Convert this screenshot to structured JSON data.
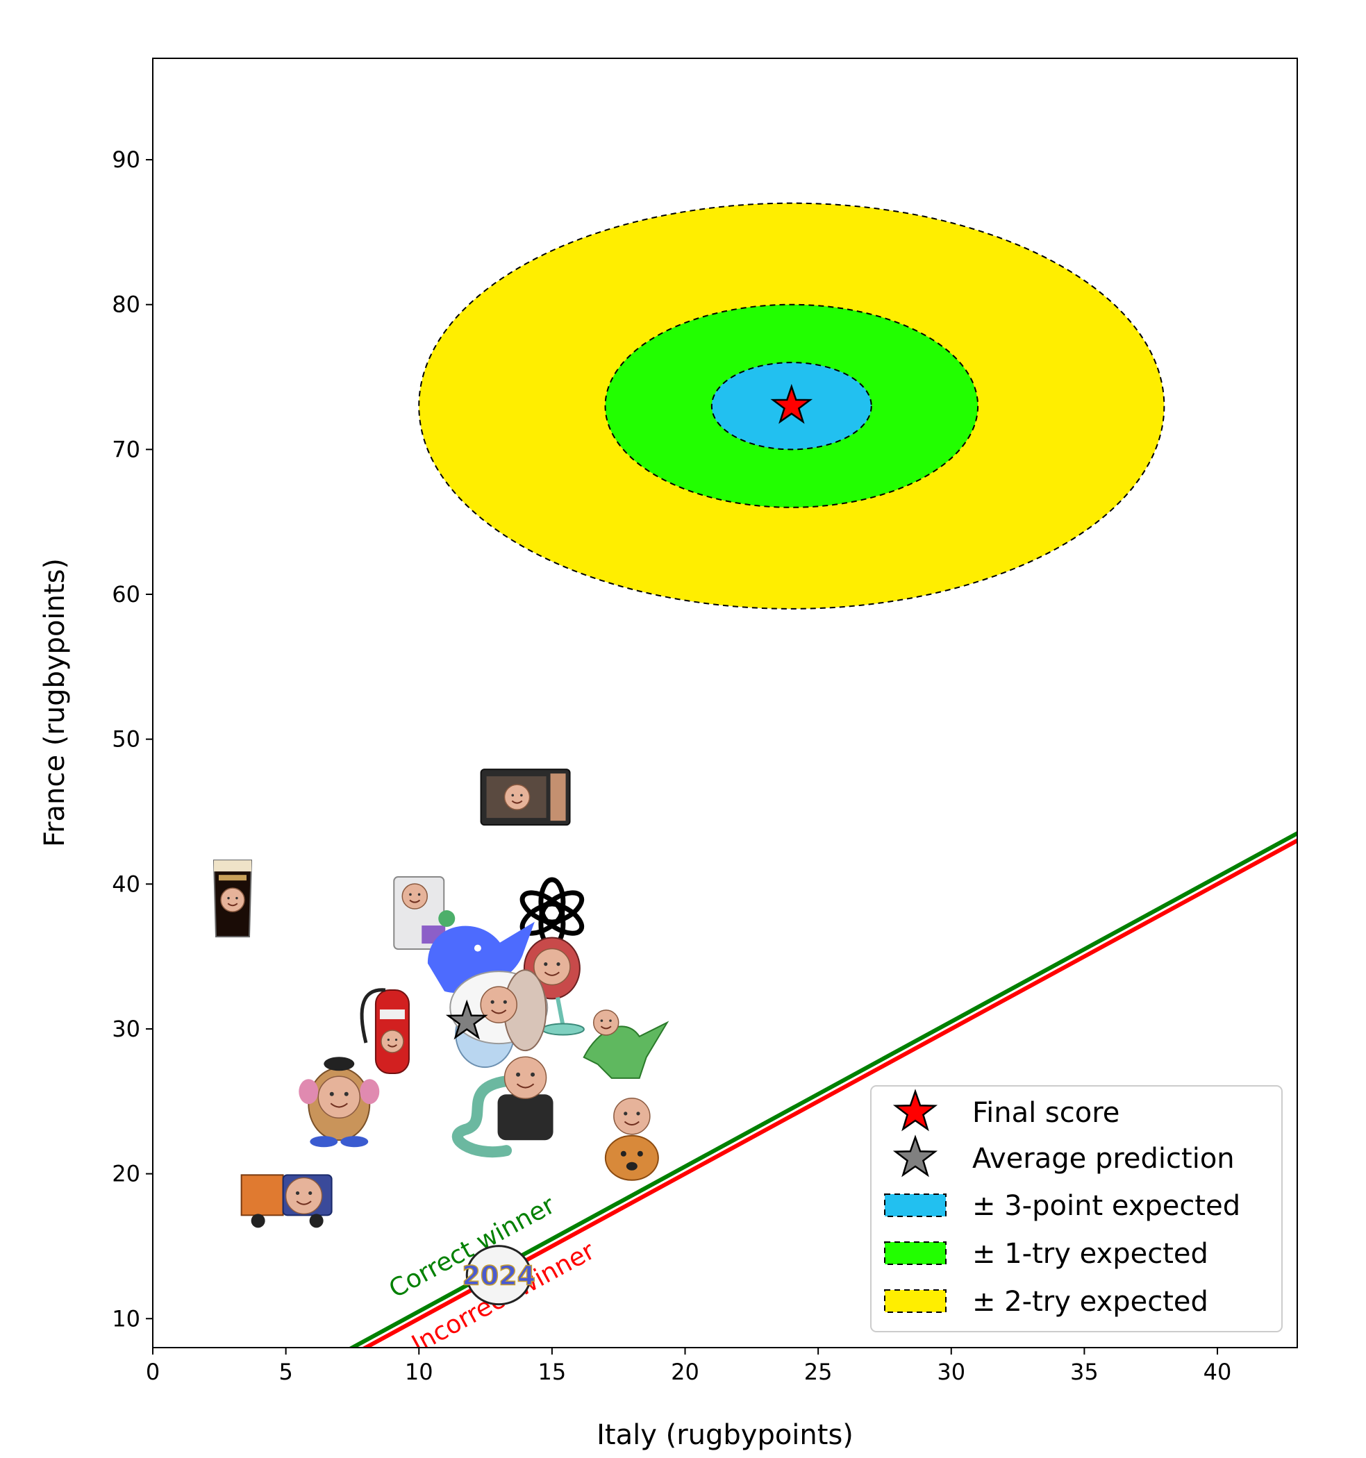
{
  "chart_data": {
    "type": "scatter",
    "xlabel": "Italy (rugbypoints)",
    "ylabel": "France (rugbypoints)",
    "xlim": [
      0,
      43
    ],
    "ylim": [
      8,
      97
    ],
    "xticks": [
      0,
      5,
      10,
      15,
      20,
      25,
      30,
      35,
      40
    ],
    "yticks": [
      10,
      20,
      30,
      40,
      50,
      60,
      70,
      80,
      90
    ],
    "grid": false,
    "final_score": {
      "label": "Final score",
      "x": 24,
      "y": 73,
      "color": "#ff0000"
    },
    "average_prediction": {
      "label": "Average prediction",
      "x": 11.8,
      "y": 30.5,
      "color": "#808080"
    },
    "regions": [
      {
        "label": "± 2-try expected",
        "center": [
          24,
          73
        ],
        "rx": 14,
        "ry": 14,
        "color": "#ffee00"
      },
      {
        "label": "± 1-try expected",
        "center": [
          24,
          73
        ],
        "rx": 7,
        "ry": 7,
        "color": "#22ff00"
      },
      {
        "label": "± 3-point expected",
        "center": [
          24,
          73
        ],
        "rx": 3,
        "ry": 3,
        "color": "#22c0f0"
      }
    ],
    "legend_order": [
      "Final score",
      "Average prediction",
      "± 3-point expected",
      "± 1-try expected",
      "± 2-try expected"
    ],
    "legend_placement": "lower-right",
    "winner_lines": {
      "correct": {
        "label": "Correct winner",
        "color": "#008000",
        "offset": 0.5
      },
      "incorrect": {
        "label": "Incorrect winner",
        "color": "#ff0000",
        "offset": 0
      }
    },
    "predictions": [
      {
        "icon": "guinness-pint-icon",
        "x": 3,
        "y": 39
      },
      {
        "icon": "microwave-icon",
        "x": 14,
        "y": 46
      },
      {
        "icon": "computer-tower-icon",
        "x": 10,
        "y": 38
      },
      {
        "icon": "openai-logo-icon",
        "x": 15,
        "y": 38
      },
      {
        "icon": "chair-icon",
        "x": 15,
        "y": 34
      },
      {
        "icon": "whale-icon",
        "x": 12,
        "y": 35
      },
      {
        "icon": "fire-extinguisher-icon",
        "x": 9,
        "y": 30
      },
      {
        "icon": "sheep-icon",
        "x": 13,
        "y": 31
      },
      {
        "icon": "dinosaur-icon",
        "x": 17.5,
        "y": 29
      },
      {
        "icon": "snake-icon",
        "x": 12.5,
        "y": 24
      },
      {
        "icon": "portrait-icon",
        "x": 14,
        "y": 25
      },
      {
        "icon": "potato-head-icon",
        "x": 7,
        "y": 25
      },
      {
        "icon": "dog-icon",
        "x": 18,
        "y": 21
      },
      {
        "icon": "truck-icon",
        "x": 5,
        "y": 18
      },
      {
        "icon": "rugby-ball-2024-icon",
        "x": 13,
        "y": 13
      }
    ],
    "ball_text": "2024"
  }
}
